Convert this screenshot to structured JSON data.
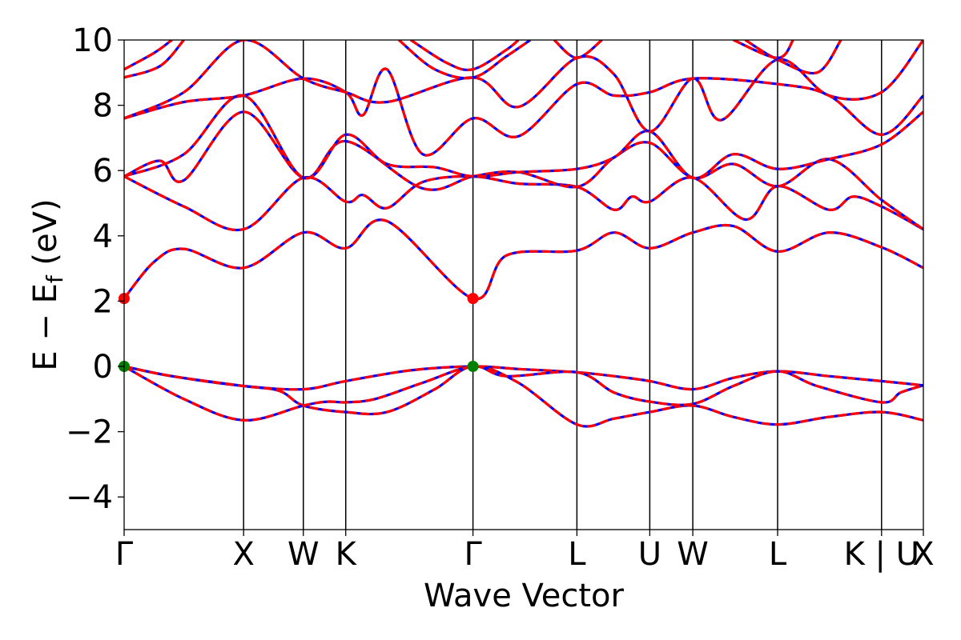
{
  "chart_data": {
    "type": "line",
    "title": "",
    "xlabel": "Wave Vector",
    "ylabel_main": "E − E",
    "ylabel_sub": "f",
    "ylabel_unit": " (eV)",
    "ylim": [
      -5,
      10
    ],
    "yticks": [
      -4,
      -2,
      0,
      2,
      4,
      6,
      8,
      10
    ],
    "ytick_labels": [
      "−4",
      "−2",
      "0",
      "2",
      "4",
      "6",
      "8",
      "10"
    ],
    "kpoints": [
      {
        "x": 0.0,
        "label": "Γ"
      },
      {
        "x": 1.0,
        "label": "X"
      },
      {
        "x": 1.5,
        "label": "W"
      },
      {
        "x": 1.855,
        "label": "K"
      },
      {
        "x": 2.92,
        "label": "Γ"
      },
      {
        "x": 3.79,
        "label": "L"
      },
      {
        "x": 4.4,
        "label": "U"
      },
      {
        "x": 4.76,
        "label": "W"
      },
      {
        "x": 5.47,
        "label": "L"
      },
      {
        "x": 6.34,
        "label": "K | U"
      },
      {
        "x": 6.69,
        "label": "X"
      }
    ],
    "xlim": [
      0,
      6.69
    ],
    "colors": {
      "band_solid": "#0000ff",
      "band_dashed": "#ff0000",
      "cbm": "#ff0000",
      "vbm": "#008000",
      "kline": "#000000"
    },
    "special_points": [
      {
        "name": "CBM",
        "x": 0.0,
        "y": 2.08
      },
      {
        "name": "CBM",
        "x": 2.92,
        "y": 2.08
      },
      {
        "name": "VBM",
        "x": 0.0,
        "y": 0.0
      },
      {
        "name": "VBM",
        "x": 2.92,
        "y": 0.0
      }
    ],
    "series": [
      {
        "points": [
          [
            0,
            0
          ],
          [
            0.4,
            -0.3
          ],
          [
            1.0,
            -0.6
          ],
          [
            1.5,
            -0.7
          ],
          [
            1.855,
            -0.45
          ],
          [
            2.4,
            -0.12
          ],
          [
            2.92,
            0
          ],
          [
            3.3,
            -0.08
          ],
          [
            3.79,
            -0.18
          ],
          [
            4.1,
            -0.3
          ],
          [
            4.4,
            -0.45
          ],
          [
            4.76,
            -0.7
          ],
          [
            5.1,
            -0.35
          ],
          [
            5.47,
            -0.15
          ],
          [
            5.9,
            -0.3
          ],
          [
            6.34,
            -0.45
          ],
          [
            6.69,
            -0.58
          ]
        ]
      },
      {
        "points": [
          [
            0,
            0
          ],
          [
            0.4,
            -0.3
          ],
          [
            1.0,
            -0.6
          ],
          [
            1.3,
            -0.75
          ],
          [
            1.5,
            -1.2
          ],
          [
            1.855,
            -1.4
          ],
          [
            2.2,
            -1.4
          ],
          [
            2.6,
            -0.7
          ],
          [
            2.92,
            0
          ],
          [
            3.3,
            -0.5
          ],
          [
            3.79,
            -1.78
          ],
          [
            4.1,
            -1.6
          ],
          [
            4.4,
            -1.4
          ],
          [
            4.76,
            -1.2
          ],
          [
            5.1,
            -1.55
          ],
          [
            5.47,
            -1.78
          ],
          [
            5.9,
            -1.55
          ],
          [
            6.34,
            -1.4
          ],
          [
            6.69,
            -1.65
          ]
        ]
      },
      {
        "points": [
          [
            0,
            0
          ],
          [
            0.5,
            -1.0
          ],
          [
            1.0,
            -1.65
          ],
          [
            1.5,
            -1.2
          ],
          [
            1.7,
            -1.08
          ],
          [
            1.855,
            -1.1
          ],
          [
            2.1,
            -1.0
          ],
          [
            2.5,
            -0.5
          ],
          [
            2.92,
            0
          ],
          [
            3.2,
            -0.3
          ],
          [
            3.79,
            -0.18
          ],
          [
            4.1,
            -0.8
          ],
          [
            4.4,
            -1.08
          ],
          [
            4.76,
            -1.15
          ],
          [
            5.1,
            -0.6
          ],
          [
            5.47,
            -0.15
          ],
          [
            5.8,
            -0.6
          ],
          [
            6.34,
            -1.1
          ],
          [
            6.5,
            -0.8
          ],
          [
            6.69,
            -0.58
          ]
        ]
      },
      {
        "points": [
          [
            0,
            2.08
          ],
          [
            0.25,
            3.2
          ],
          [
            0.5,
            3.6
          ],
          [
            1.0,
            3.02
          ],
          [
            1.5,
            4.1
          ],
          [
            1.855,
            3.62
          ],
          [
            2.2,
            4.45
          ],
          [
            2.92,
            2.08
          ],
          [
            3.2,
            3.4
          ],
          [
            3.79,
            3.55
          ],
          [
            4.1,
            4.1
          ],
          [
            4.4,
            3.62
          ],
          [
            4.76,
            4.1
          ],
          [
            5.1,
            4.3
          ],
          [
            5.47,
            3.52
          ],
          [
            5.9,
            4.1
          ],
          [
            6.34,
            3.65
          ],
          [
            6.69,
            3.02
          ]
        ]
      },
      {
        "points": [
          [
            0,
            5.82
          ],
          [
            0.5,
            4.9
          ],
          [
            1.0,
            4.2
          ],
          [
            1.5,
            5.78
          ],
          [
            1.855,
            5.05
          ],
          [
            2.0,
            5.25
          ],
          [
            2.2,
            4.85
          ],
          [
            2.5,
            5.65
          ],
          [
            2.92,
            5.82
          ],
          [
            3.3,
            5.6
          ],
          [
            3.79,
            5.5
          ],
          [
            4.1,
            4.8
          ],
          [
            4.25,
            5.2
          ],
          [
            4.4,
            5.05
          ],
          [
            4.76,
            5.78
          ],
          [
            5.2,
            4.5
          ],
          [
            5.47,
            5.52
          ],
          [
            5.9,
            4.8
          ],
          [
            6.1,
            5.2
          ],
          [
            6.34,
            4.9
          ],
          [
            6.69,
            4.2
          ]
        ]
      },
      {
        "points": [
          [
            0,
            5.82
          ],
          [
            0.3,
            6.3
          ],
          [
            0.5,
            5.7
          ],
          [
            1.0,
            7.8
          ],
          [
            1.5,
            5.78
          ],
          [
            1.855,
            6.9
          ],
          [
            2.5,
            5.45
          ],
          [
            2.92,
            5.82
          ],
          [
            3.3,
            5.95
          ],
          [
            3.79,
            5.5
          ],
          [
            4.1,
            6.4
          ],
          [
            4.4,
            6.85
          ],
          [
            4.76,
            5.78
          ],
          [
            5.1,
            6.2
          ],
          [
            5.47,
            5.52
          ],
          [
            5.9,
            6.35
          ],
          [
            6.34,
            5.1
          ],
          [
            6.69,
            4.2
          ]
        ]
      },
      {
        "points": [
          [
            0,
            5.82
          ],
          [
            0.5,
            6.5
          ],
          [
            1.0,
            8.3
          ],
          [
            1.5,
            5.78
          ],
          [
            1.855,
            7.1
          ],
          [
            2.2,
            6.2
          ],
          [
            2.6,
            6.1
          ],
          [
            2.92,
            5.82
          ],
          [
            3.3,
            5.95
          ],
          [
            3.79,
            6.05
          ],
          [
            4.1,
            6.4
          ],
          [
            4.4,
            7.2
          ],
          [
            4.76,
            5.78
          ],
          [
            5.1,
            6.5
          ],
          [
            5.47,
            6.05
          ],
          [
            5.9,
            6.35
          ],
          [
            6.34,
            6.8
          ],
          [
            6.69,
            7.8
          ]
        ]
      },
      {
        "points": [
          [
            0,
            7.6
          ],
          [
            0.5,
            8.1
          ],
          [
            1.0,
            8.3
          ],
          [
            1.5,
            8.82
          ],
          [
            1.855,
            8.4
          ],
          [
            2.0,
            7.7
          ],
          [
            2.2,
            9.1
          ],
          [
            2.5,
            6.5
          ],
          [
            2.92,
            7.6
          ],
          [
            3.3,
            7.05
          ],
          [
            3.79,
            8.65
          ],
          [
            4.1,
            8.3
          ],
          [
            4.4,
            8.4
          ],
          [
            4.76,
            8.82
          ],
          [
            5.47,
            8.65
          ],
          [
            5.9,
            8.3
          ],
          [
            6.34,
            7.1
          ],
          [
            6.69,
            8.3
          ]
        ]
      },
      {
        "points": [
          [
            0,
            7.6
          ],
          [
            0.5,
            8.4
          ],
          [
            1.0,
            10.0
          ],
          [
            1.5,
            8.82
          ],
          [
            1.855,
            8.4
          ],
          [
            2.2,
            8.1
          ],
          [
            2.92,
            8.85
          ],
          [
            3.3,
            7.95
          ],
          [
            3.79,
            9.45
          ],
          [
            4.1,
            8.95
          ],
          [
            4.4,
            7.2
          ],
          [
            4.76,
            8.82
          ],
          [
            5.0,
            7.55
          ],
          [
            5.47,
            9.4
          ],
          [
            5.9,
            8.3
          ],
          [
            6.34,
            8.4
          ],
          [
            6.69,
            10.0
          ]
        ]
      },
      {
        "points": [
          [
            0,
            8.85
          ],
          [
            0.3,
            9.2
          ],
          [
            0.5,
            10.0
          ]
        ]
      },
      {
        "points": [
          [
            0,
            9.1
          ],
          [
            0.25,
            9.6
          ],
          [
            0.4,
            10.0
          ]
        ]
      },
      {
        "points": [
          [
            2.3,
            10.0
          ],
          [
            2.6,
            9.1
          ],
          [
            2.92,
            8.85
          ],
          [
            3.2,
            9.5
          ],
          [
            3.4,
            10.0
          ]
        ]
      },
      {
        "points": [
          [
            2.4,
            10.0
          ],
          [
            2.7,
            9.3
          ],
          [
            2.92,
            9.1
          ],
          [
            3.2,
            9.7
          ],
          [
            3.3,
            10.0
          ]
        ]
      },
      {
        "points": [
          [
            3.6,
            10.0
          ],
          [
            3.79,
            9.45
          ],
          [
            4.0,
            10.0
          ]
        ]
      },
      {
        "points": [
          [
            5.2,
            10.0
          ],
          [
            5.47,
            9.4
          ],
          [
            5.8,
            9.0
          ],
          [
            6.0,
            10.0
          ]
        ]
      },
      {
        "points": [
          [
            5.1,
            10.0
          ],
          [
            5.47,
            9.45
          ],
          [
            5.6,
            10.0
          ]
        ]
      }
    ]
  }
}
